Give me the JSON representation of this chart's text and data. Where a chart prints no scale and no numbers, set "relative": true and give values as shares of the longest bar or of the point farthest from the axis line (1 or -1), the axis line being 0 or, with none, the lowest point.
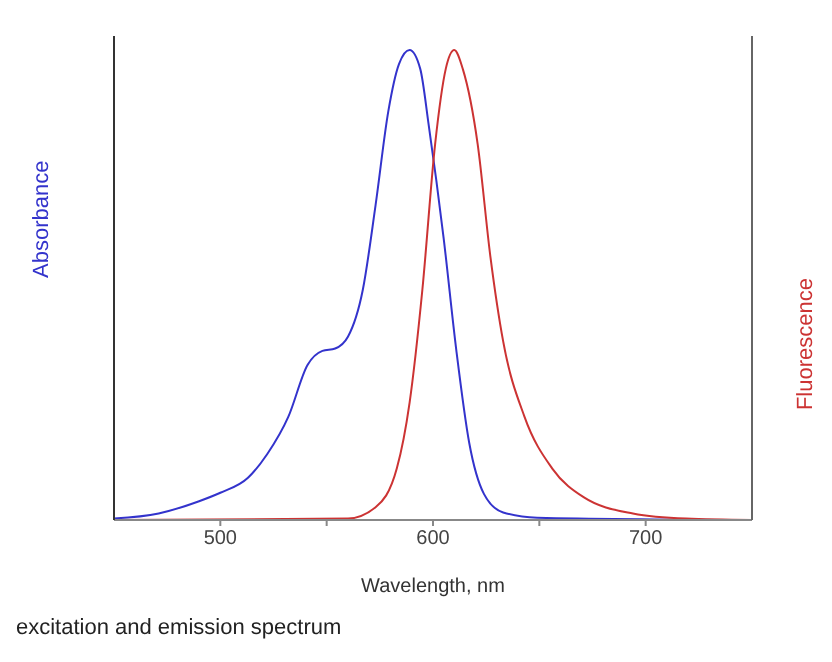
{
  "chart_data": {
    "type": "line",
    "relative": true,
    "xlabel": "Wavelength, nm",
    "ylabel": "Absorbance",
    "y2label": "Fluorescence",
    "xlim": [
      450,
      750
    ],
    "xticks": [
      500,
      {
        "value": 550,
        "label": null
      },
      600,
      {
        "value": 650,
        "label": null
      },
      700
    ],
    "marker": "none",
    "line_style": "solid",
    "annotations": [
      "excitation and emission spectrum"
    ],
    "series": [
      {
        "color": "#3333cc",
        "x": [
          450,
          471,
          490,
          500,
          513,
          522,
          532,
          541,
          548,
          554,
          560,
          567,
          573,
          579,
          584,
          589,
          594,
          598,
          605,
          611,
          617,
          624,
          633,
          649,
          750
        ],
        "values": [
          0.003,
          0.014,
          0.04,
          0.058,
          0.09,
          0.14,
          0.22,
          0.33,
          0.36,
          0.365,
          0.39,
          0.49,
          0.67,
          0.87,
          0.97,
          1,
          0.96,
          0.84,
          0.6,
          0.36,
          0.165,
          0.055,
          0.016,
          0.005,
          0
        ]
      },
      {
        "color": "#cc3333",
        "x": [
          450,
          560,
          573,
          583,
          589,
          595,
          601,
          606,
          610,
          614,
          621,
          627,
          633,
          643,
          656,
          671,
          694,
          719,
          750
        ],
        "values": [
          0,
          0.003,
          0.027,
          0.11,
          0.25,
          0.49,
          0.8,
          0.96,
          1,
          0.96,
          0.8,
          0.56,
          0.38,
          0.22,
          0.11,
          0.048,
          0.014,
          0.003,
          0
        ]
      }
    ]
  }
}
